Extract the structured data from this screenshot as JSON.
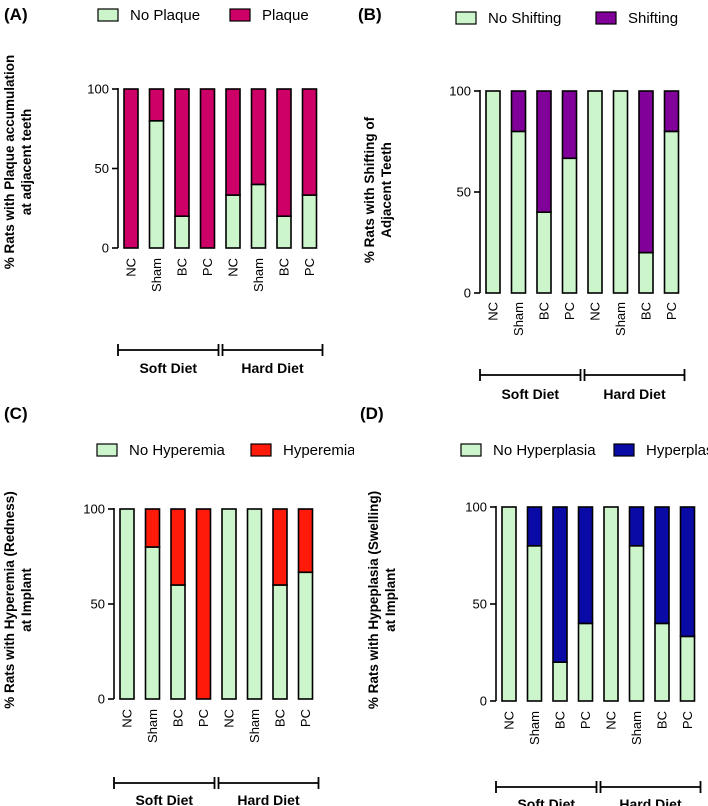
{
  "figure": {
    "categories": [
      "NC",
      "Sham",
      "BC",
      "PC",
      "NC",
      "Sham",
      "BC",
      "PC"
    ],
    "groups": [
      "Soft Diet",
      "Hard Diet"
    ],
    "base_color": "#ccf5cc"
  },
  "chart_data": [
    {
      "panel": "(A)",
      "type": "bar",
      "stacked": true,
      "categories": [
        "NC",
        "Sham",
        "BC",
        "PC",
        "NC",
        "Sham",
        "BC",
        "PC"
      ],
      "groups": [
        "Soft Diet",
        "Hard Diet"
      ],
      "series": [
        {
          "name": "No Plaque",
          "color": "#ccf5cc",
          "values": [
            0,
            80,
            20,
            0,
            33.3,
            40,
            20,
            33.3
          ]
        },
        {
          "name": "Plaque",
          "color": "#cc0066",
          "values": [
            100,
            20,
            80,
            100,
            66.7,
            60,
            80,
            66.7
          ]
        }
      ],
      "ylabel": [
        "% Rats with Plaque accumulation",
        "at adjacent teeth"
      ],
      "yticks": [
        0,
        50,
        100
      ],
      "ylim": [
        0,
        100
      ]
    },
    {
      "panel": "(B)",
      "type": "bar",
      "stacked": true,
      "categories": [
        "NC",
        "Sham",
        "BC",
        "PC",
        "NC",
        "Sham",
        "BC",
        "PC"
      ],
      "groups": [
        "Soft Diet",
        "Hard Diet"
      ],
      "series": [
        {
          "name": "No Shifting",
          "color": "#ccf5cc",
          "values": [
            100,
            80,
            40,
            66.7,
            100,
            100,
            20,
            80
          ]
        },
        {
          "name": "Shifting",
          "color": "#800099",
          "values": [
            0,
            20,
            60,
            33.3,
            0,
            0,
            80,
            20
          ]
        }
      ],
      "ylabel": [
        "% Rats with Shifting of",
        "Adjacent Teeth"
      ],
      "yticks": [
        0,
        50,
        100
      ],
      "ylim": [
        0,
        100
      ]
    },
    {
      "panel": "(C)",
      "type": "bar",
      "stacked": true,
      "categories": [
        "NC",
        "Sham",
        "BC",
        "PC",
        "NC",
        "Sham",
        "BC",
        "PC"
      ],
      "groups": [
        "Soft Diet",
        "Hard Diet"
      ],
      "series": [
        {
          "name": "No Hyperemia",
          "color": "#ccf5cc",
          "values": [
            100,
            80,
            60,
            0,
            100,
            100,
            60,
            66.7
          ]
        },
        {
          "name": "Hyperemia",
          "color": "#ff1a0a",
          "values": [
            0,
            20,
            40,
            100,
            0,
            0,
            40,
            33.3
          ]
        }
      ],
      "ylabel": [
        "% Rats with Hyperemia (Redness)",
        "at Implant"
      ],
      "yticks": [
        0,
        50,
        100
      ],
      "ylim": [
        0,
        100
      ]
    },
    {
      "panel": "(D)",
      "type": "bar",
      "stacked": true,
      "categories": [
        "NC",
        "Sham",
        "BC",
        "PC",
        "NC",
        "Sham",
        "BC",
        "PC"
      ],
      "groups": [
        "Soft Diet",
        "Hard Diet"
      ],
      "series": [
        {
          "name": "No Hyperplasia",
          "color": "#ccf5cc",
          "values": [
            100,
            80,
            20,
            40,
            100,
            80,
            40,
            33.3
          ]
        },
        {
          "name": "Hyperplasia",
          "color": "#0a0aa6",
          "values": [
            0,
            20,
            80,
            60,
            0,
            20,
            60,
            66.7
          ]
        }
      ],
      "ylabel": [
        "% Rats with Hypeplasia (Swelling)",
        "at Implant"
      ],
      "yticks": [
        0,
        50,
        100
      ],
      "ylim": [
        0,
        100
      ]
    }
  ]
}
